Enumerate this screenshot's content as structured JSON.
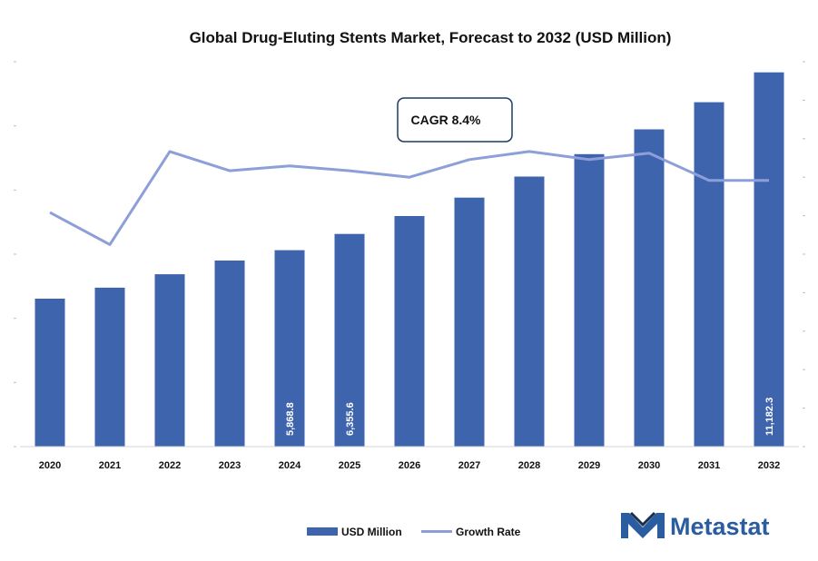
{
  "chart_data": {
    "type": "bar",
    "title": "Global Drug-Eluting Stents Market, Forecast to 2032 (USD Million)",
    "categories": [
      "2020",
      "2021",
      "2022",
      "2023",
      "2024",
      "2025",
      "2026",
      "2027",
      "2028",
      "2029",
      "2030",
      "2031",
      "2032"
    ],
    "series": [
      {
        "name": "USD Million",
        "type": "bar",
        "axis": "left",
        "values": [
          4420,
          4750,
          5150,
          5560,
          5868.8,
          6355.6,
          6890,
          7440,
          8070,
          8740,
          9480,
          10290,
          11182.3
        ],
        "data_labels": {
          "4": "5,868.8",
          "5": "6,355.6",
          "12": "11,182.3"
        }
      },
      {
        "name": "Growth Rate",
        "type": "line",
        "axis": "right",
        "values": [
          7.3,
          6.3,
          9.2,
          8.6,
          8.75,
          8.6,
          8.4,
          8.95,
          9.2,
          8.95,
          9.15,
          8.3,
          8.3
        ]
      }
    ],
    "ylim": [
      0,
      11500
    ],
    "y2lim": [
      0,
      12
    ],
    "colors": {
      "bar": "#3d64ad",
      "line": "#8c9fd8"
    },
    "annotation": "CAGR 8.4%",
    "legend_position": "bottom-center"
  },
  "logo": {
    "text": "Metastat"
  }
}
